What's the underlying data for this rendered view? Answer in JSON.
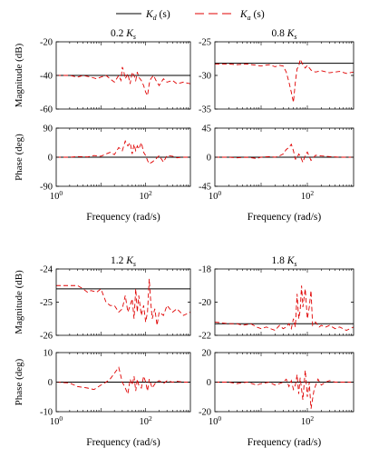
{
  "legend": {
    "items": [
      {
        "label": "K",
        "sub": "d",
        "suffix": " (s)",
        "color": "#000000",
        "style": "solid"
      },
      {
        "label": "K",
        "sub": "a",
        "suffix": " (s)",
        "color": "#e00000",
        "style": "dashed"
      }
    ]
  },
  "colors": {
    "reference": "#000000",
    "estimate": "#e00000"
  },
  "chart_data": [
    {
      "type": "line",
      "xscale": "log",
      "xlim": [
        1,
        1000
      ],
      "ylim": [
        -60,
        -20
      ],
      "title": "0.2 K",
      "title_sub": "s",
      "ylabel": "Magnitude (dB)",
      "xlabel": "",
      "yticks": [
        "-20",
        "-40",
        "-60"
      ],
      "ytick_values": [
        -20,
        -40,
        -60
      ],
      "xticks": [],
      "xtick_values": [],
      "series": [
        {
          "name": "K_d(s)",
          "style": "solid",
          "x": [
            1,
            1000
          ],
          "y": [
            -40,
            -40
          ]
        },
        {
          "name": "K_a(s)",
          "style": "dashed",
          "x": [
            1,
            2,
            3,
            4,
            6,
            8,
            10,
            13,
            16,
            20,
            25,
            28,
            30,
            32,
            35,
            40,
            45,
            50,
            55,
            60,
            65,
            70,
            80,
            90,
            100,
            110,
            120,
            130,
            150,
            170,
            200,
            250,
            300,
            400,
            500,
            700,
            1000
          ],
          "y": [
            -40,
            -40,
            -41,
            -40,
            -41,
            -42,
            -41,
            -40,
            -42,
            -44,
            -40,
            -43,
            -35,
            -37,
            -42,
            -39,
            -45,
            -38,
            -40,
            -43,
            -38,
            -41,
            -43,
            -46,
            -50,
            -52,
            -45,
            -42,
            -40,
            -43,
            -46,
            -42,
            -44,
            -43,
            -45,
            -44,
            -45
          ]
        }
      ]
    },
    {
      "type": "line",
      "xscale": "log",
      "xlim": [
        1,
        1000
      ],
      "ylim": [
        -35,
        -25
      ],
      "title": "0.8 K",
      "title_sub": "s",
      "ylabel": "",
      "xlabel": "",
      "yticks": [
        "-25",
        "-30",
        "-35"
      ],
      "ytick_values": [
        -25,
        -30,
        -35
      ],
      "xticks": [],
      "xtick_values": [],
      "series": [
        {
          "name": "K_d(s)",
          "style": "solid",
          "x": [
            1,
            1000
          ],
          "y": [
            -28.2,
            -28.2
          ]
        },
        {
          "name": "K_a(s)",
          "style": "dashed",
          "x": [
            1,
            2,
            3,
            5,
            8,
            10,
            15,
            20,
            25,
            30,
            35,
            40,
            45,
            50,
            55,
            60,
            65,
            70,
            80,
            90,
            100,
            120,
            150,
            200,
            300,
            500,
            700,
            1000
          ],
          "y": [
            -28.3,
            -28.3,
            -28.4,
            -28.3,
            -28.5,
            -28.6,
            -28.4,
            -28.7,
            -28.5,
            -28.6,
            -29.5,
            -31,
            -32.5,
            -34,
            -31,
            -29,
            -28.7,
            -27.6,
            -28.4,
            -28.9,
            -28.5,
            -29.2,
            -29.5,
            -29.3,
            -29.6,
            -29.4,
            -29.7,
            -29.5
          ]
        }
      ]
    },
    {
      "type": "line",
      "xscale": "log",
      "xlim": [
        1,
        1000
      ],
      "ylim": [
        -90,
        90
      ],
      "ylabel": "Phase (deg)",
      "xlabel": "Frequency (rad/s)",
      "yticks": [
        "90",
        "0",
        "-90"
      ],
      "ytick_values": [
        90,
        0,
        -90
      ],
      "xticks": [
        "10^0",
        "10^2"
      ],
      "xtick_values": [
        1,
        100
      ],
      "series": [
        {
          "name": "K_d(s)",
          "style": "solid",
          "x": [
            1,
            1000
          ],
          "y": [
            0,
            0
          ]
        },
        {
          "name": "K_a(s)",
          "style": "dashed",
          "x": [
            1,
            2,
            3,
            5,
            7,
            10,
            13,
            16,
            20,
            25,
            30,
            35,
            40,
            45,
            50,
            55,
            60,
            65,
            70,
            80,
            90,
            100,
            110,
            120,
            140,
            170,
            200,
            250,
            300,
            400,
            500,
            700,
            1000
          ],
          "y": [
            0,
            0,
            2,
            1,
            5,
            3,
            10,
            15,
            8,
            30,
            20,
            50,
            35,
            45,
            10,
            40,
            20,
            35,
            25,
            45,
            15,
            5,
            -10,
            -20,
            -15,
            -5,
            5,
            -15,
            5,
            3,
            -2,
            0,
            0
          ]
        }
      ]
    },
    {
      "type": "line",
      "xscale": "log",
      "xlim": [
        1,
        1000
      ],
      "ylim": [
        -45,
        45
      ],
      "ylabel": "",
      "xlabel": "Frequency (rad/s)",
      "yticks": [
        "45",
        "0",
        "-45"
      ],
      "ytick_values": [
        45,
        0,
        -45
      ],
      "xticks": [
        "10^0",
        "10^2"
      ],
      "xtick_values": [
        1,
        100
      ],
      "series": [
        {
          "name": "K_d(s)",
          "style": "solid",
          "x": [
            1,
            1000
          ],
          "y": [
            0,
            0
          ]
        },
        {
          "name": "K_a(s)",
          "style": "dashed",
          "x": [
            1,
            2,
            3,
            5,
            8,
            10,
            15,
            20,
            25,
            30,
            35,
            40,
            45,
            50,
            55,
            60,
            65,
            70,
            80,
            90,
            100,
            120,
            150,
            200,
            300,
            500,
            1000
          ],
          "y": [
            0,
            0,
            -1,
            0,
            -2,
            0,
            1,
            0,
            2,
            5,
            12,
            15,
            20,
            10,
            -3,
            -2,
            5,
            2,
            -8,
            3,
            8,
            -5,
            3,
            2,
            1,
            0,
            0
          ]
        }
      ]
    },
    {
      "type": "line",
      "xscale": "log",
      "xlim": [
        1,
        1000
      ],
      "ylim": [
        -26,
        -24
      ],
      "title": "1.2 K",
      "title_sub": "s",
      "ylabel": "Magnitude (dB)",
      "xlabel": "",
      "yticks": [
        "-24",
        "-25",
        "-26"
      ],
      "ytick_values": [
        -24,
        -25,
        -26
      ],
      "xticks": [],
      "xtick_values": [],
      "series": [
        {
          "name": "K_d(s)",
          "style": "solid",
          "x": [
            1,
            1000
          ],
          "y": [
            -24.6,
            -24.6
          ]
        },
        {
          "name": "K_a(s)",
          "style": "dashed",
          "x": [
            1,
            2,
            3,
            4,
            5,
            6,
            8,
            10,
            13,
            16,
            20,
            25,
            30,
            35,
            40,
            45,
            50,
            55,
            60,
            65,
            70,
            80,
            90,
            100,
            110,
            120,
            130,
            140,
            160,
            180,
            200,
            250,
            300,
            400,
            500,
            700,
            1000
          ],
          "y": [
            -24.5,
            -24.5,
            -24.5,
            -24.6,
            -24.7,
            -24.65,
            -24.7,
            -24.6,
            -25,
            -25.1,
            -25.1,
            -25.3,
            -25.2,
            -24.8,
            -25.3,
            -25.1,
            -24.9,
            -25.5,
            -24.6,
            -25.3,
            -24.8,
            -25.4,
            -25.1,
            -25.6,
            -25.3,
            -24.3,
            -25,
            -25.5,
            -25.2,
            -25.7,
            -25.3,
            -25.4,
            -25.1,
            -25.3,
            -25.2,
            -25.4,
            -25.3
          ]
        }
      ]
    },
    {
      "type": "line",
      "xscale": "log",
      "xlim": [
        1,
        1000
      ],
      "ylim": [
        -22,
        -18
      ],
      "title": "1.8 K",
      "title_sub": "s",
      "ylabel": "",
      "xlabel": "",
      "yticks": [
        "-18",
        "-20",
        "-22"
      ],
      "ytick_values": [
        -18,
        -20,
        -22
      ],
      "xticks": [],
      "xtick_values": [],
      "series": [
        {
          "name": "K_d(s)",
          "style": "solid",
          "x": [
            1,
            1000
          ],
          "y": [
            -21.3,
            -21.3
          ]
        },
        {
          "name": "K_a(s)",
          "style": "dashed",
          "x": [
            1,
            2,
            3,
            4,
            6,
            8,
            10,
            13,
            16,
            20,
            25,
            30,
            35,
            40,
            45,
            50,
            55,
            60,
            65,
            70,
            75,
            80,
            90,
            100,
            110,
            120,
            130,
            150,
            180,
            200,
            250,
            300,
            400,
            500,
            700,
            1000
          ],
          "y": [
            -21.2,
            -21.3,
            -21.3,
            -21.4,
            -21.3,
            -21.5,
            -21.6,
            -21.5,
            -21.6,
            -21.7,
            -21.4,
            -21.6,
            -21.5,
            -21.3,
            -21.6,
            -21,
            -21.5,
            -19.5,
            -21,
            -20.5,
            -19,
            -20.3,
            -19.2,
            -21,
            -20.3,
            -19.3,
            -21.4,
            -21.2,
            -21.5,
            -21.4,
            -21.5,
            -21.4,
            -21.6,
            -21.5,
            -21.7,
            -21.5
          ]
        }
      ]
    },
    {
      "type": "line",
      "xscale": "log",
      "xlim": [
        1,
        1000
      ],
      "ylim": [
        -10,
        10
      ],
      "ylabel": "Phase (deg)",
      "xlabel": "Frequency (rad/s)",
      "yticks": [
        "10",
        "0",
        "-10"
      ],
      "ytick_values": [
        10,
        0,
        -10
      ],
      "xticks": [
        "10^0",
        "10^2"
      ],
      "xtick_values": [
        1,
        100
      ],
      "series": [
        {
          "name": "K_d(s)",
          "style": "solid",
          "x": [
            1,
            1000
          ],
          "y": [
            0,
            0
          ]
        },
        {
          "name": "K_a(s)",
          "style": "dashed",
          "x": [
            1,
            2,
            3,
            5,
            7,
            10,
            13,
            16,
            20,
            25,
            30,
            35,
            40,
            45,
            50,
            55,
            60,
            65,
            70,
            80,
            90,
            100,
            110,
            120,
            140,
            170,
            200,
            250,
            300,
            400,
            500,
            700,
            1000
          ],
          "y": [
            0,
            -0.3,
            -1.5,
            -2,
            -2.5,
            -1,
            0,
            1,
            3,
            5,
            0,
            -2,
            -4,
            1,
            -1,
            2,
            -3,
            1,
            -1,
            -2,
            2,
            0,
            -3,
            1,
            -2,
            0,
            0.5,
            -0.5,
            0.5,
            0,
            0.3,
            0,
            0
          ]
        }
      ]
    },
    {
      "type": "line",
      "xscale": "log",
      "xlim": [
        1,
        1000
      ],
      "ylim": [
        -20,
        20
      ],
      "ylabel": "",
      "xlabel": "Frequency (rad/s)",
      "yticks": [
        "20",
        "0",
        "-20"
      ],
      "ytick_values": [
        20,
        0,
        -20
      ],
      "xticks": [
        "10^0",
        "10^2"
      ],
      "xtick_values": [
        1,
        100
      ],
      "series": [
        {
          "name": "K_d(s)",
          "style": "solid",
          "x": [
            1,
            1000
          ],
          "y": [
            0,
            0
          ]
        },
        {
          "name": "K_a(s)",
          "style": "dashed",
          "x": [
            1,
            2,
            3,
            5,
            8,
            10,
            15,
            20,
            25,
            30,
            35,
            40,
            45,
            50,
            55,
            60,
            65,
            70,
            80,
            90,
            100,
            110,
            120,
            140,
            170,
            200,
            250,
            300,
            400,
            500,
            700,
            1000
          ],
          "y": [
            0,
            0,
            -1,
            0,
            -2,
            -1,
            0,
            -2,
            -1,
            0,
            2,
            -3,
            1,
            -5,
            -2,
            5,
            -8,
            3,
            -12,
            8,
            -10,
            0,
            -18,
            -5,
            2,
            -2,
            0,
            1,
            0,
            0,
            0,
            0
          ]
        }
      ]
    }
  ]
}
